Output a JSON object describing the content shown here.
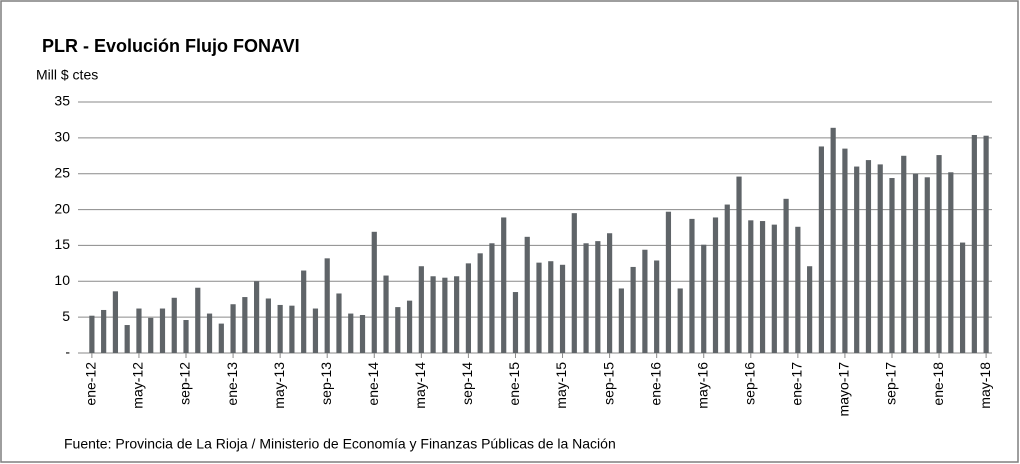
{
  "chart_data": {
    "type": "bar",
    "title": "PLR - Evolución Flujo FONAVI",
    "y_axis_label": "Mill $ ctes",
    "source": "Fuente: Provincia de La Rioja / Ministerio de Economía y Finanzas Públicas de la Nación",
    "color": "#5f6468",
    "grid": true,
    "ylim": [
      0,
      35
    ],
    "yticks": [
      {
        "value": 0,
        "label": "-"
      },
      5,
      10,
      15,
      20,
      25,
      30,
      35
    ],
    "categories": [
      "ene-12",
      null,
      null,
      null,
      "may-12",
      null,
      null,
      null,
      "sep-12",
      null,
      null,
      null,
      "ene-13",
      null,
      null,
      null,
      "may-13",
      null,
      null,
      null,
      "sep-13",
      null,
      null,
      null,
      "ene-14",
      null,
      null,
      null,
      "may-14",
      null,
      null,
      null,
      "sep-14",
      null,
      null,
      null,
      "ene-15",
      null,
      null,
      null,
      "may-15",
      null,
      null,
      null,
      "sep-15",
      null,
      null,
      null,
      "ene-16",
      null,
      null,
      null,
      "may-16",
      null,
      null,
      null,
      "sep-16",
      null,
      null,
      null,
      "ene-17",
      null,
      null,
      null,
      "mayo-17",
      null,
      null,
      null,
      "sep-17",
      null,
      null,
      null,
      "ene-18",
      null,
      null,
      null,
      "may-18"
    ],
    "values": [
      5.2,
      6,
      8.6,
      3.9,
      6.2,
      4.9,
      6.2,
      7.7,
      4.6,
      9.1,
      5.5,
      4.1,
      6.8,
      7.8,
      10,
      7.6,
      6.7,
      6.6,
      11.5,
      6.2,
      13.2,
      8.3,
      5.5,
      5.3,
      16.9,
      10.8,
      6.4,
      7.3,
      12.1,
      10.7,
      10.5,
      10.7,
      12.5,
      13.9,
      15.3,
      18.9,
      8.5,
      16.2,
      12.6,
      12.8,
      12.3,
      19.5,
      15.3,
      15.6,
      16.7,
      9,
      12,
      14.4,
      12.9,
      19.7,
      9,
      18.7,
      15.1,
      18.9,
      20.7,
      24.6,
      18.5,
      18.4,
      17.9,
      21.5,
      17.6,
      12.1,
      28.8,
      31.4,
      28.5,
      26,
      26.9,
      26.3,
      24.4,
      27.5,
      25,
      24.5,
      27.6,
      25.2,
      15.4,
      30.4,
      30.3
    ]
  }
}
